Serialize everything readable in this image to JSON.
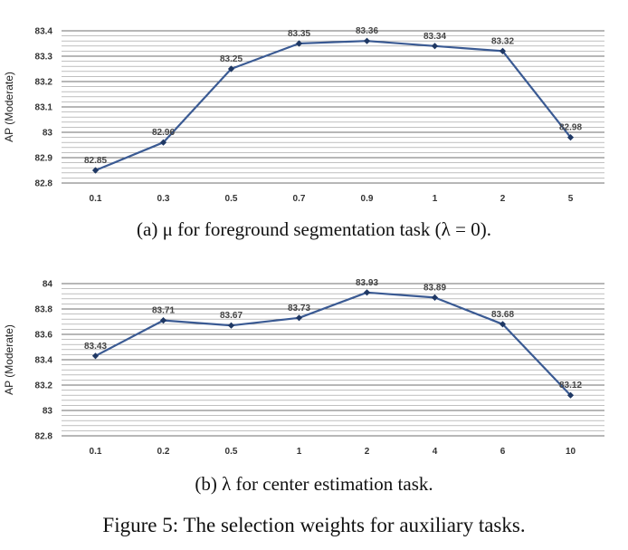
{
  "chart_data": [
    {
      "type": "line",
      "ylabel": "AP (Moderate)",
      "categories": [
        "0.1",
        "0.3",
        "0.5",
        "0.7",
        "0.9",
        "1",
        "2",
        "5"
      ],
      "values": [
        82.85,
        82.96,
        83.25,
        83.35,
        83.36,
        83.34,
        83.32,
        82.98
      ],
      "data_labels": [
        "82.85",
        "82.96",
        "83.25",
        "83.35",
        "83.36",
        "83.34",
        "83.32",
        "82.98"
      ],
      "yticks": [
        "82.8",
        "82.9",
        "83",
        "83.1",
        "83.2",
        "83.3",
        "83.4"
      ],
      "ylim": [
        82.8,
        83.4
      ],
      "minor_step": 0.02,
      "grid": true,
      "color": "#3a5a93"
    },
    {
      "type": "line",
      "ylabel": "AP (Moderate)",
      "categories": [
        "0.1",
        "0.2",
        "0.5",
        "1",
        "2",
        "4",
        "6",
        "10"
      ],
      "values": [
        83.43,
        83.71,
        83.67,
        83.73,
        83.93,
        83.89,
        83.68,
        83.12
      ],
      "data_labels": [
        "83.43",
        "83.71",
        "83.67",
        "83.73",
        "83.93",
        "83.89",
        "83.68",
        "83.12"
      ],
      "yticks": [
        "82.8",
        "83",
        "83.2",
        "83.4",
        "83.6",
        "83.8",
        "84"
      ],
      "ylim": [
        82.8,
        84.0
      ],
      "minor_step": 0.04,
      "grid": true,
      "color": "#3a5a93"
    }
  ],
  "captions": {
    "a": "(a) μ for foreground segmentation task (λ = 0).",
    "b": "(b) λ for center estimation task.",
    "figure": "Figure 5: The selection weights for auxiliary tasks."
  }
}
